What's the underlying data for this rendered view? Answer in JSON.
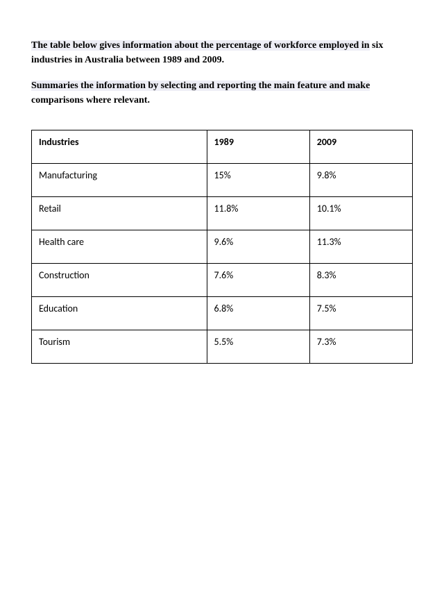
{
  "prompt": {
    "paragraph1_highlighted": "The table below gives information about the percentage of workforce employed in",
    "paragraph1_rest": " six industries in Australia between 1989 and 2009.",
    "paragraph2_highlighted": "Summaries the information by selecting and reporting the main feature and make",
    "paragraph2_rest": " comparisons where relevant."
  },
  "table": {
    "type": "table",
    "columns": [
      "Industries",
      "1989",
      "2009"
    ],
    "rows": [
      [
        "Manufacturing",
        "15%",
        "9.8%"
      ],
      [
        "Retail",
        "11.8%",
        "10.1%"
      ],
      [
        "Health care",
        "9.6%",
        "11.3%"
      ],
      [
        "Construction",
        "7.6%",
        "8.3%"
      ],
      [
        "Education",
        "6.8%",
        "7.5%"
      ],
      [
        "Tourism",
        "5.5%",
        "7.3%"
      ]
    ],
    "border_color": "#000000",
    "background_color": "#ffffff",
    "header_fontweight": "bold",
    "body_fontweight": "normal",
    "font_family": "Calibri",
    "font_size": 14,
    "col_widths_pct": [
      46,
      27,
      27
    ]
  },
  "styling": {
    "highlight_color": "#eeeef6",
    "text_color": "#000000",
    "prompt_font_family": "Times New Roman",
    "prompt_font_size": 14,
    "prompt_font_weight": "bold",
    "page_background": "#ffffff"
  }
}
